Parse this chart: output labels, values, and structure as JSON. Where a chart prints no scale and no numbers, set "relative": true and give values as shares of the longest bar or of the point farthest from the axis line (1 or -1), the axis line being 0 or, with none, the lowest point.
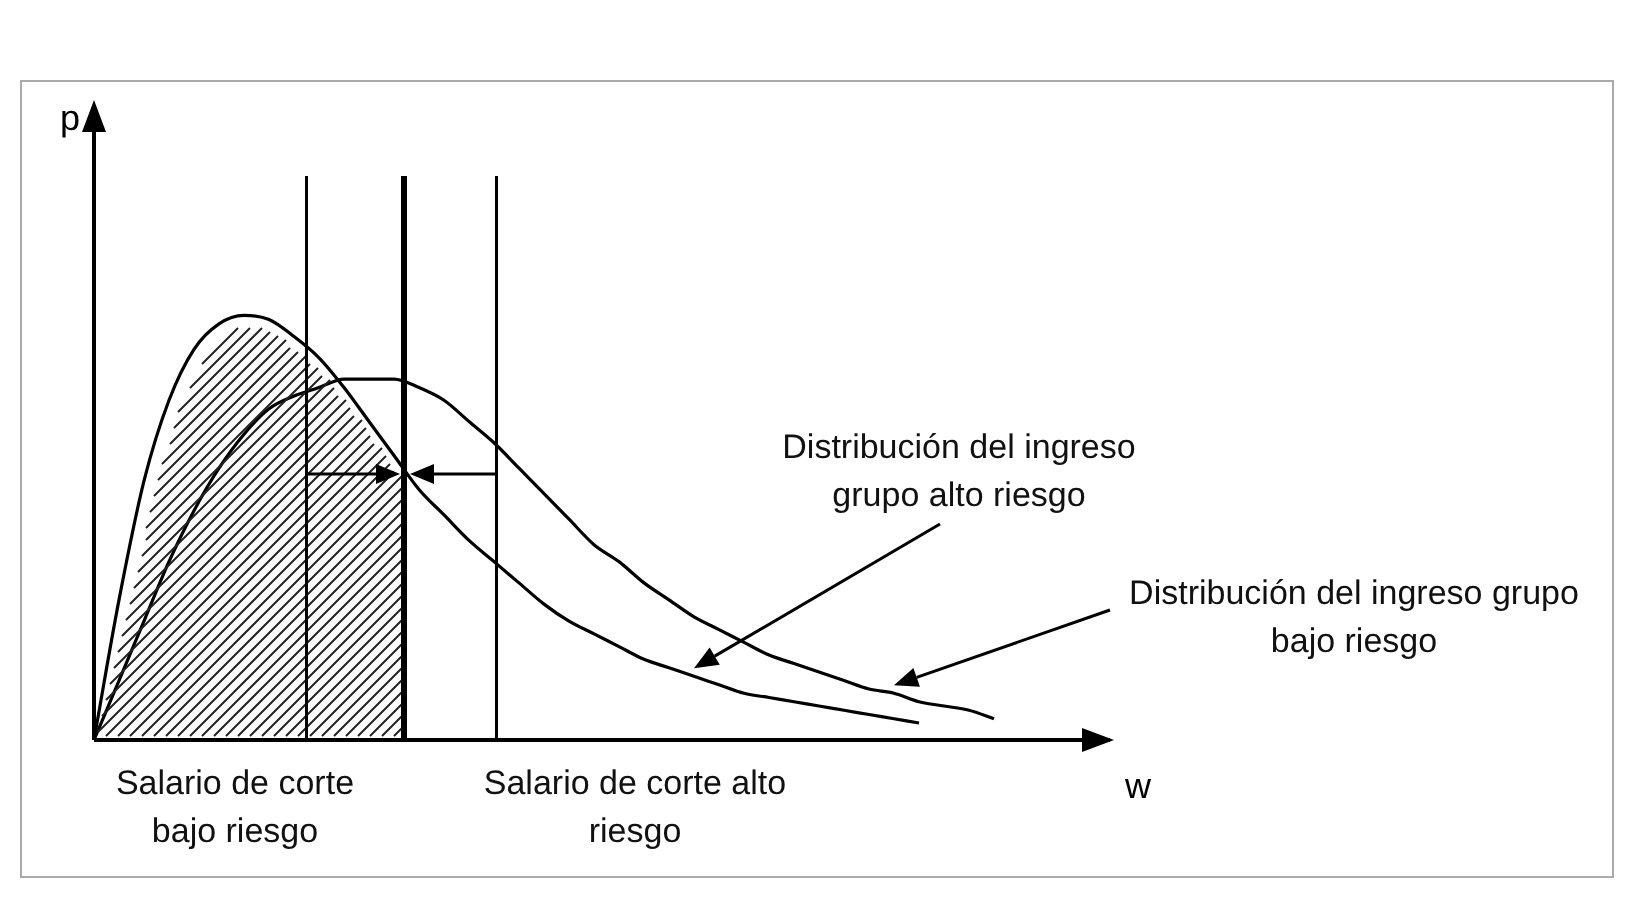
{
  "chart_data": {
    "type": "line",
    "relative": true,
    "xlabel": "w",
    "ylabel": "p",
    "legend": false,
    "marker": "none",
    "categories": [
      null,
      null,
      null,
      null,
      null,
      null,
      null,
      null,
      null,
      null,
      null,
      null,
      null,
      null,
      null,
      null,
      null,
      null,
      null,
      null,
      null,
      null,
      null,
      null,
      null,
      null,
      null,
      null,
      null,
      null,
      null,
      null,
      null,
      null,
      null,
      null,
      null,
      null,
      null,
      null,
      null
    ],
    "series": [
      {
        "color": "#000000",
        "values": [
          0,
          0.33,
          0.61,
          0.8,
          0.92,
          0.98,
          1,
          0.99,
          0.95,
          0.9,
          0.83,
          0.75,
          0.67,
          0.59,
          0.53,
          0.47,
          0.42,
          0.37,
          0.32,
          0.28,
          0.25,
          0.22,
          0.19,
          0.17,
          0.15,
          0.13,
          0.11,
          0.1,
          0.09,
          0.08,
          0.07,
          0.06,
          0.05,
          0.04,
          null,
          null,
          null,
          null,
          null,
          null,
          null
        ]
      },
      {
        "color": "#000000",
        "values": [
          0,
          0.14,
          0.28,
          0.42,
          0.54,
          0.64,
          0.72,
          0.78,
          0.81,
          0.83,
          0.85,
          0.85,
          0.85,
          0.83,
          0.8,
          0.75,
          0.7,
          0.64,
          0.58,
          0.52,
          0.46,
          0.42,
          0.37,
          0.33,
          0.29,
          0.26,
          0.23,
          0.2,
          0.18,
          0.16,
          0.14,
          0.12,
          0.11,
          0.09,
          0.08,
          0.07,
          0.05,
          null,
          null,
          null,
          null
        ]
      }
    ],
    "annotations": [
      "Distribución del ingreso grupo alto riesgo",
      "Distribución del ingreso grupo bajo riesgo",
      "Salario de corte bajo riesgo",
      "Salario de corte alto riesgo"
    ]
  }
}
